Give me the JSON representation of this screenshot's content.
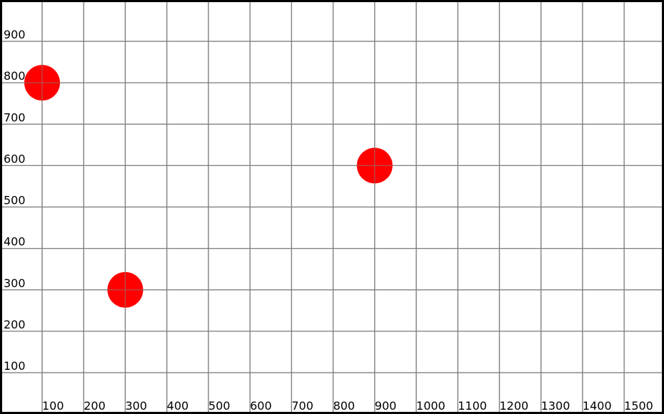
{
  "chart_data": {
    "type": "scatter",
    "title": "",
    "xlabel": "",
    "ylabel": "",
    "xlim": [
      0,
      1600
    ],
    "ylim": [
      0,
      1000
    ],
    "grid": true,
    "x_ticks": [
      100,
      200,
      300,
      400,
      500,
      600,
      700,
      800,
      900,
      1000,
      1100,
      1200,
      1300,
      1400,
      1500
    ],
    "y_ticks": [
      100,
      200,
      300,
      400,
      500,
      600,
      700,
      800,
      900
    ],
    "x_tick_labels": [
      "100",
      "200",
      "300",
      "400",
      "500",
      "600",
      "700",
      "800",
      "900",
      "1000",
      "1100",
      "1200",
      "1300",
      "1400",
      "1500"
    ],
    "y_tick_labels": [
      "100",
      "200",
      "300",
      "400",
      "500",
      "600",
      "700",
      "800",
      "900"
    ],
    "series": [
      {
        "color": "#ff0000",
        "points": [
          {
            "x": 100,
            "y": 800
          },
          {
            "x": 300,
            "y": 300
          },
          {
            "x": 900,
            "y": 600
          }
        ]
      }
    ]
  },
  "colors": {
    "grid": "#808080",
    "border": "#000000",
    "background": "#ffffff",
    "point": "#ff0000"
  }
}
